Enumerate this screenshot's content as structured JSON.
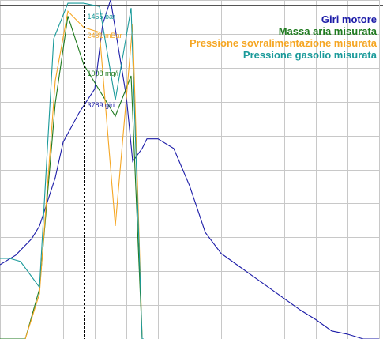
{
  "chart_data": {
    "type": "line",
    "title": "",
    "xlabel": "",
    "ylabel": "",
    "xlim": [
      0,
      24
    ],
    "ylim": [
      0,
      21
    ],
    "grid": true,
    "legend_placement": "top-right",
    "cursor": {
      "x": 5.35
    },
    "series": [
      {
        "name": "Giri motore",
        "color": "#1c1ca8",
        "x": [
          0,
          1,
          2,
          2.5,
          3,
          3.5,
          4,
          5,
          6,
          6.5,
          7,
          7.5,
          8,
          8.4,
          9,
          9.3,
          10,
          11,
          12,
          13,
          14,
          15,
          16,
          17,
          18,
          19,
          20,
          21,
          22,
          23,
          24
        ],
        "y": [
          4.6,
          5.2,
          6.2,
          7.0,
          8.5,
          10.0,
          12.2,
          14.0,
          15.5,
          19.5,
          21.0,
          18.0,
          15.0,
          11.0,
          11.8,
          12.4,
          12.4,
          11.8,
          9.5,
          6.6,
          5.3,
          4.6,
          3.9,
          3.2,
          2.5,
          1.8,
          1.2,
          0.5,
          0.3,
          0.0,
          0.0
        ]
      },
      {
        "name": "Massa aria misurata",
        "color": "#1f7a1f",
        "x": [
          0,
          0.1,
          1.6,
          2.5,
          3.5,
          4.3,
          5.3,
          7.3,
          8.3,
          9.0,
          9.1
        ],
        "y": [
          0.0,
          0.0,
          0.0,
          3.1,
          14.6,
          20.0,
          17.0,
          13.8,
          16.3,
          0.0,
          0.0
        ],
        "visible_from": 0.1
      },
      {
        "name": "Pressione sovralimentazione misurata",
        "color": "#f5a623",
        "x": [
          1.6,
          2.5,
          3.5,
          4.3,
          5.3,
          6.3,
          7.3,
          8.4,
          9.0,
          9.1
        ],
        "y": [
          0.0,
          2.8,
          16.0,
          20.3,
          19.3,
          19.0,
          7.0,
          19.5,
          0.0,
          0.0
        ]
      },
      {
        "name": "Pressione gasolio misurata",
        "color": "#1a9a9a",
        "x": [
          0,
          0.6,
          1.3,
          2.5,
          3.4,
          4.3,
          5.3,
          6.3,
          7.3,
          8.3,
          9.0,
          9.1
        ],
        "y": [
          5.0,
          5.0,
          4.8,
          3.2,
          18.6,
          20.8,
          20.8,
          20.6,
          14.8,
          20.5,
          0.0,
          0.0
        ]
      }
    ],
    "readouts": [
      {
        "text": "1455 bar",
        "series": 3
      },
      {
        "text": "2481 mBar",
        "series": 2
      },
      {
        "text": "1008 mg/i",
        "series": 1
      },
      {
        "text": "3789 giri",
        "series": 0
      }
    ]
  }
}
